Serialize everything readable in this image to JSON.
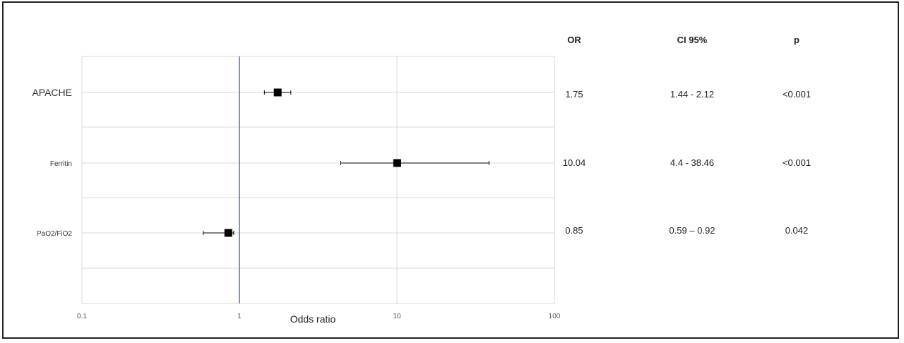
{
  "chart_data": {
    "type": "forest",
    "x_scale": "log10",
    "xlim": [
      0.1,
      100
    ],
    "x_ticks": [
      "0.1",
      "1",
      "10",
      "100"
    ],
    "xlabel": "Odds ratio",
    "reference_line": 1,
    "grid": true,
    "table_headers": {
      "or": "OR",
      "ci": "CI 95%",
      "p": "p"
    },
    "rows": [
      {
        "label": "APACHE",
        "or": 1.75,
        "ci_low": 1.44,
        "ci_high": 2.12,
        "or_text": "1.75",
        "ci_text": "1.44 - 2.12",
        "p_text": "<0.001"
      },
      {
        "label": "Ferritin",
        "or": 10.04,
        "ci_low": 4.4,
        "ci_high": 38.46,
        "or_text": "10.04",
        "ci_text": "4.4 - 38.46",
        "p_text": "<0.001"
      },
      {
        "label": "PaO2/FiO2",
        "or": 0.85,
        "ci_low": 0.59,
        "ci_high": 0.92,
        "or_text": "0.85",
        "ci_text": "0.59 – 0.92",
        "p_text": "0.042"
      }
    ]
  },
  "colors": {
    "reference_line": "#4472c4",
    "marker": "#000000",
    "grid": "#d9d9d9"
  }
}
